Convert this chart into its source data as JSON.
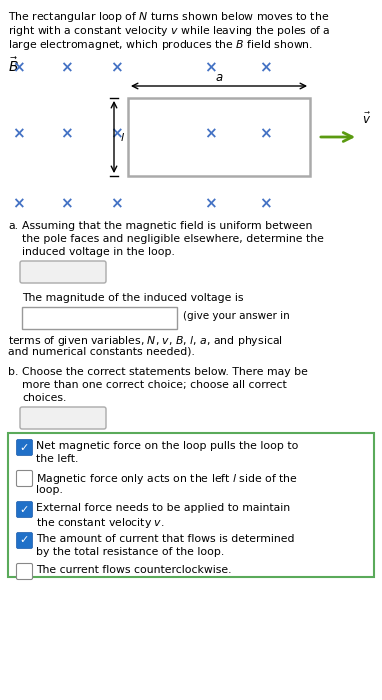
{
  "bg_color": "#ffffff",
  "text_color": "#000000",
  "blue_x_color": "#4472c4",
  "top_lines": [
    "The rectangular loop of $N$ turns shown below moves to the",
    "right with a constant velocity $v$ while leaving the poles of a",
    "large electromagnet, which produces the $B$ field shown."
  ],
  "check_color": "#2070c8",
  "green_border_color": "#5aaa5a",
  "hint_bg": "#f0f0f0",
  "hint_border": "#aaaaaa",
  "rect_color": "#aaaaaa",
  "arrow_color": "#5a9a10",
  "choices": [
    {
      "checked": true,
      "line1": "Net magnetic force on the loop pulls the loop to",
      "line2": "the left."
    },
    {
      "checked": false,
      "line1": "Magnetic force only acts on the left $l$ side of the",
      "line2": "loop."
    },
    {
      "checked": true,
      "line1": "External force needs to be applied to maintain",
      "line2": "the constant velocity $v$."
    },
    {
      "checked": true,
      "line1": "The amount of current that flows is determined",
      "line2": "by the total resistance of the loop."
    },
    {
      "checked": false,
      "line1": "The current flows counterclockwise.",
      "line2": ""
    }
  ]
}
